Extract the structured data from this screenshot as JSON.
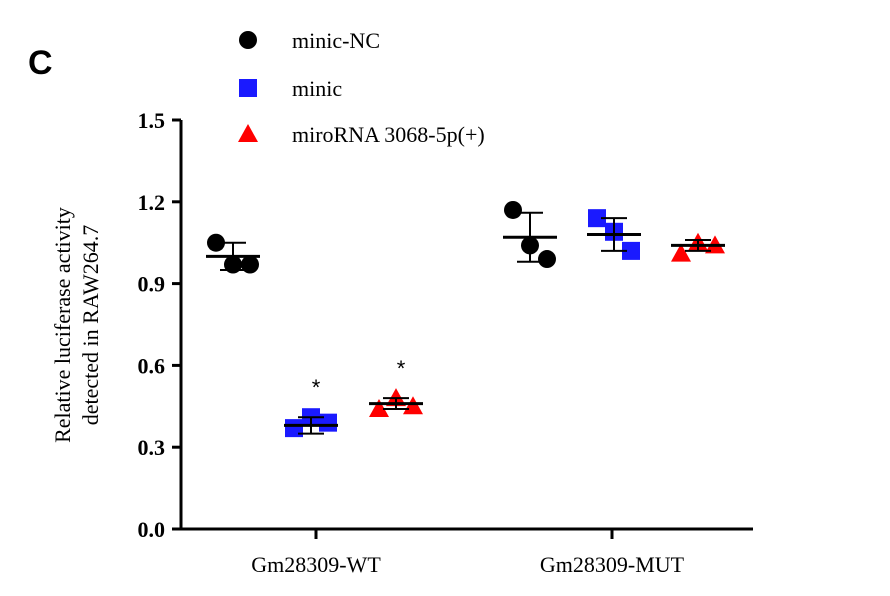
{
  "panel_label": "C",
  "chart_data": {
    "type": "scatter",
    "ylabel_line1": "Relative luciferase activity",
    "ylabel_line2": "detected in RAW264.7",
    "ylim": [
      0,
      1.5
    ],
    "yticks": [
      "0.0",
      "0.3",
      "0.6",
      "0.9",
      "1.2",
      "1.5"
    ],
    "categories": [
      "Gm28309-WT",
      "Gm28309-MUT"
    ],
    "series": [
      {
        "name": "minic-NC",
        "marker": "circle",
        "color": "#000000",
        "points": [
          [
            1.05,
            0.97,
            0.97
          ],
          [
            1.17,
            1.04,
            0.99
          ]
        ],
        "mean": [
          1.0,
          1.07
        ],
        "error": [
          0.05,
          0.09
        ],
        "significance": [
          "",
          ""
        ]
      },
      {
        "name": "minic",
        "marker": "square",
        "color": "#1a1aff",
        "points": [
          [
            0.37,
            0.41,
            0.39
          ],
          [
            1.14,
            1.09,
            1.02
          ]
        ],
        "mean": [
          0.38,
          1.08
        ],
        "error": [
          0.03,
          0.06
        ],
        "significance": [
          "*",
          ""
        ]
      },
      {
        "name": "miroRNA 3068-5p(+)",
        "marker": "triangle",
        "color": "#ff0000",
        "points": [
          [
            0.44,
            0.48,
            0.45
          ],
          [
            1.01,
            1.05,
            1.04
          ]
        ],
        "mean": [
          0.46,
          1.04
        ],
        "error": [
          0.02,
          0.02
        ],
        "significance": [
          "*",
          ""
        ]
      }
    ]
  }
}
